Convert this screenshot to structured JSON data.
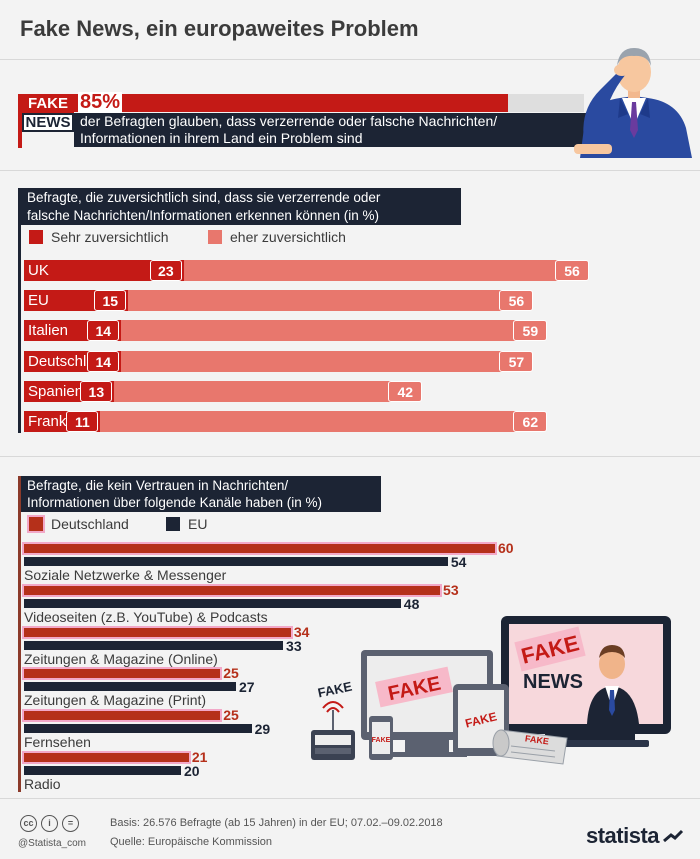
{
  "title": "Fake News, ein europaweites Problem",
  "headline_stat": {
    "badge_top": "FAKE",
    "badge_bottom": "NEWS",
    "value_label": "85%",
    "value": 85,
    "text_line1": "der Befragten glauben, dass verzerrende oder falsche Nachrichten/",
    "text_line2": "Informationen in ihrem Land ein Problem sind"
  },
  "colors": {
    "red": "#c41a16",
    "salmon": "#e8776d",
    "navy": "#1c2434",
    "de_brown": "#b5301a"
  },
  "chart_data": [
    {
      "type": "bar",
      "orientation": "horizontal",
      "stacked": true,
      "title_line1": "Befragte, die zuversichtlich sind, dass sie verzerrende oder",
      "title_line2": "falsche Nachrichten/Informationen erkennen können",
      "unit": "(in %)",
      "legend": [
        "Sehr zuversichtlich",
        "eher zuversichtlich"
      ],
      "legend_position": "top-left",
      "categories": [
        "UK",
        "EU",
        "Italien",
        "Deutschland",
        "Spanien",
        "Frankreich"
      ],
      "series": [
        {
          "name": "Sehr zuversichtlich",
          "values": [
            23,
            15,
            14,
            14,
            13,
            11
          ]
        },
        {
          "name": "eher zuversichtlich",
          "values": [
            56,
            56,
            59,
            57,
            42,
            62
          ]
        }
      ]
    },
    {
      "type": "bar",
      "orientation": "horizontal",
      "stacked": false,
      "title_line1": "Befragte, die kein Vertrauen in Nachrichten/",
      "title_line2": "Informationen über folgende Kanäle haben",
      "unit": "(in %)",
      "legend": [
        "Deutschland",
        "EU"
      ],
      "legend_position": "top-left",
      "categories": [
        "Soziale Netzwerke & Messenger",
        "Videoseiten (z.B. YouTube) & Podcasts",
        "Zeitungen & Magazine (Online)",
        "Zeitungen & Magazine (Print)",
        "Fernsehen",
        "Radio"
      ],
      "series": [
        {
          "name": "Deutschland",
          "values": [
            60,
            53,
            34,
            25,
            25,
            21
          ]
        },
        {
          "name": "EU",
          "values": [
            54,
            48,
            33,
            27,
            29,
            20
          ]
        }
      ]
    }
  ],
  "illustration": {
    "fake_words": [
      "FAKE",
      "FAKE",
      "FAKE",
      "FAKE",
      "FAKE"
    ],
    "news_word": "NEWS"
  },
  "footer": {
    "basis": "Basis: 26.576 Befragte (ab 15 Jahren) in der EU; 07.02.–09.02.2018",
    "source": "Quelle: Europäische Kommission",
    "handle": "@Statista_com",
    "brand": "statista"
  }
}
